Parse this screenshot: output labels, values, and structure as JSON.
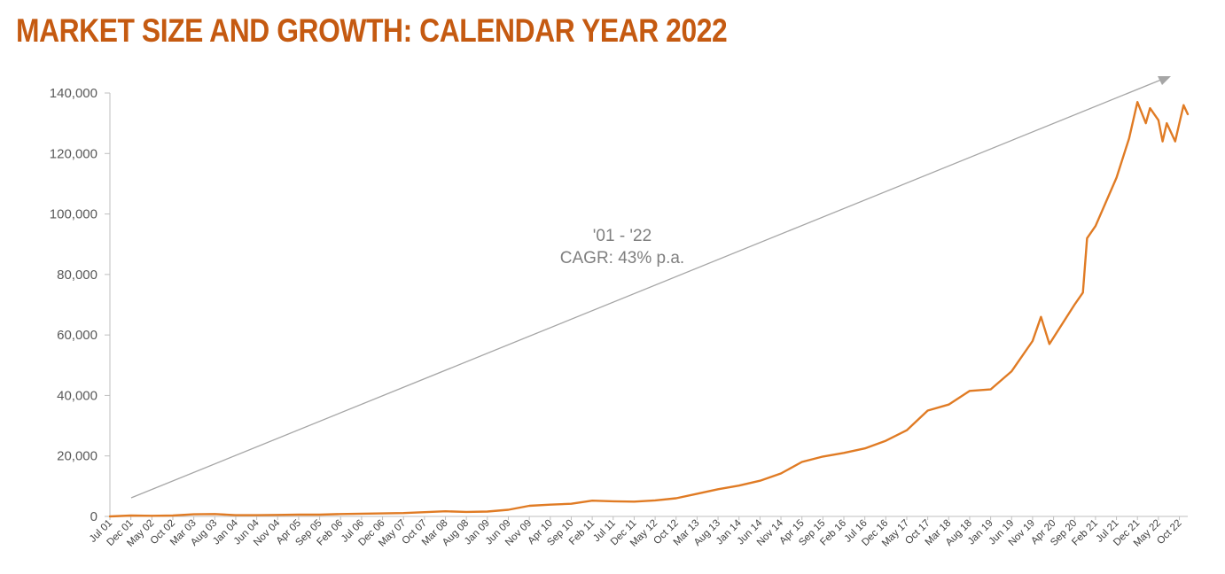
{
  "title": "MARKET SIZE AND GROWTH: CALENDAR YEAR 2022",
  "colors": {
    "title": "#C55A11",
    "line": "#E07B24",
    "arrow": "#A6A6A6",
    "axis": "#BFBFBF"
  },
  "annotation": {
    "line1": "'01 - '22",
    "line2": "CAGR: 43% p.a."
  },
  "chart_data": {
    "type": "line",
    "title": "",
    "xlabel": "",
    "ylabel": "",
    "ylim": [
      0,
      140000
    ],
    "yticks": [
      "0",
      "20,000",
      "40,000",
      "60,000",
      "80,000",
      "100,000",
      "120,000",
      "140,000"
    ],
    "grid": false,
    "legend": "none",
    "x_tick_labels": [
      "Jul 01",
      "Dec 01",
      "May 02",
      "Oct 02",
      "Mar 03",
      "Aug 03",
      "Jan 04",
      "Jun 04",
      "Nov 04",
      "Apr 05",
      "Sep 05",
      "Feb 06",
      "Jul 06",
      "Dec 06",
      "May 07",
      "Oct 07",
      "Mar 08",
      "Aug 08",
      "Jan 09",
      "Jun 09",
      "Nov 09",
      "Apr 10",
      "Sep 10",
      "Feb 11",
      "Jul 11",
      "Dec 11",
      "May 12",
      "Oct 12",
      "Mar 13",
      "Aug 13",
      "Jan 14",
      "Jun 14",
      "Nov 14",
      "Apr 15",
      "Sep 15",
      "Feb 16",
      "Jul 16",
      "Dec 16",
      "May 17",
      "Oct 17",
      "Mar 18",
      "Aug 18",
      "Jan 19",
      "Jun 19",
      "Nov 19",
      "Apr 20",
      "Sep 20",
      "Feb 21",
      "Jul 21",
      "Dec 21",
      "May 22",
      "Oct 22"
    ],
    "series": [
      {
        "points": [
          [
            "Jul 01",
            0
          ],
          [
            "Dec 01",
            300
          ],
          [
            "May 02",
            200
          ],
          [
            "Oct 02",
            300
          ],
          [
            "Mar 03",
            700
          ],
          [
            "Aug 03",
            800
          ],
          [
            "Jan 04",
            400
          ],
          [
            "Jun 04",
            400
          ],
          [
            "Nov 04",
            500
          ],
          [
            "Apr 05",
            600
          ],
          [
            "Sep 05",
            600
          ],
          [
            "Feb 06",
            800
          ],
          [
            "Jul 06",
            900
          ],
          [
            "Dec 06",
            1000
          ],
          [
            "May 07",
            1100
          ],
          [
            "Oct 07",
            1400
          ],
          [
            "Mar 08",
            1700
          ],
          [
            "Aug 08",
            1500
          ],
          [
            "Jan 09",
            1600
          ],
          [
            "Jun 09",
            2200
          ],
          [
            "Nov 09",
            3500
          ],
          [
            "Apr 10",
            3900
          ],
          [
            "Sep 10",
            4200
          ],
          [
            "Feb 11",
            5200
          ],
          [
            "Jul 11",
            5000
          ],
          [
            "Dec 11",
            4900
          ],
          [
            "May 12",
            5300
          ],
          [
            "Oct 12",
            6000
          ],
          [
            "Mar 13",
            7500
          ],
          [
            "Aug 13",
            9000
          ],
          [
            "Jan 14",
            10200
          ],
          [
            "Jun 14",
            11800
          ],
          [
            "Nov 14",
            14200
          ],
          [
            "Apr 15",
            18000
          ],
          [
            "Sep 15",
            19800
          ],
          [
            "Feb 16",
            21000
          ],
          [
            "Jul 16",
            22500
          ],
          [
            "Dec 16",
            25000
          ],
          [
            "May 17",
            28500
          ],
          [
            "Oct 17",
            35000
          ],
          [
            "Mar 18",
            37000
          ],
          [
            "Aug 18",
            41500
          ],
          [
            "Jan 19",
            42000
          ],
          [
            "Jun 19",
            48000
          ],
          [
            "Nov 19",
            58000
          ],
          [
            "Jan 20",
            66000
          ],
          [
            "Mar 20",
            57000
          ],
          [
            "Sep 20",
            70000
          ],
          [
            "Nov 20",
            74000
          ],
          [
            "Dec 20",
            92000
          ],
          [
            "Feb 21",
            96000
          ],
          [
            "Jul 21",
            112000
          ],
          [
            "Oct 21",
            125000
          ],
          [
            "Dec 21",
            137000
          ],
          [
            "Feb 22",
            130000
          ],
          [
            "Mar 22",
            135000
          ],
          [
            "May 22",
            131000
          ],
          [
            "Jun 22",
            124000
          ],
          [
            "Jul 22",
            130000
          ],
          [
            "Sep 22",
            124000
          ],
          [
            "Oct 22",
            130000
          ],
          [
            "Nov 22",
            136000
          ],
          [
            "Dec 22",
            133000
          ]
        ]
      }
    ],
    "annotations": [
      "'01 - '22",
      "CAGR: 43% p.a."
    ]
  }
}
